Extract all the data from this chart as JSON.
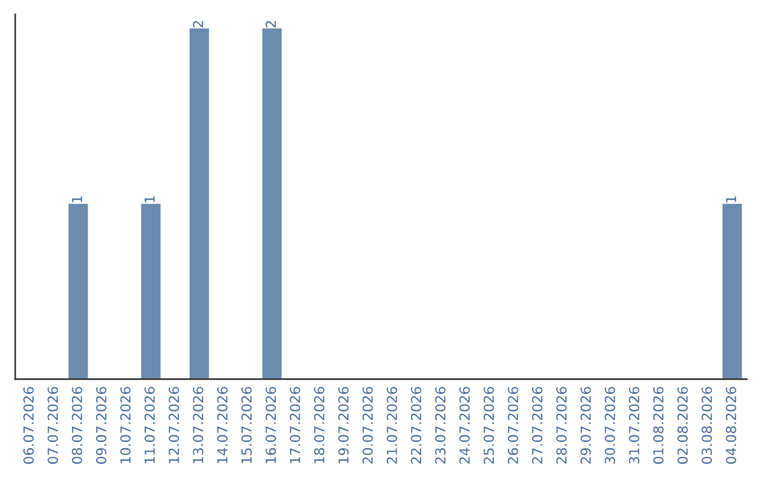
{
  "chart_data": {
    "type": "bar",
    "categories": [
      "06.07.2026",
      "07.07.2026",
      "08.07.2026",
      "09.07.2026",
      "10.07.2026",
      "11.07.2026",
      "12.07.2026",
      "13.07.2026",
      "14.07.2026",
      "15.07.2026",
      "16.07.2026",
      "17.07.2026",
      "18.07.2026",
      "19.07.2026",
      "20.07.2026",
      "21.07.2026",
      "22.07.2026",
      "23.07.2026",
      "24.07.2026",
      "25.07.2026",
      "26.07.2026",
      "27.07.2026",
      "28.07.2026",
      "29.07.2026",
      "30.07.2026",
      "31.07.2026",
      "01.08.2026",
      "02.08.2026",
      "03.08.2026",
      "04.08.2026"
    ],
    "values": [
      0,
      0,
      1,
      0,
      0,
      1,
      0,
      2,
      0,
      0,
      2,
      0,
      0,
      0,
      0,
      0,
      0,
      0,
      0,
      0,
      0,
      0,
      0,
      0,
      0,
      0,
      0,
      0,
      0,
      1
    ],
    "value_labels": [
      null,
      null,
      "1",
      null,
      null,
      "1",
      null,
      "2",
      null,
      null,
      "2",
      null,
      null,
      null,
      null,
      null,
      null,
      null,
      null,
      null,
      null,
      null,
      null,
      null,
      null,
      null,
      null,
      null,
      null,
      "1"
    ],
    "color": "#6b8cae",
    "ylim": [
      0,
      2.08
    ],
    "tick_labels": "x",
    "grid": false
  }
}
